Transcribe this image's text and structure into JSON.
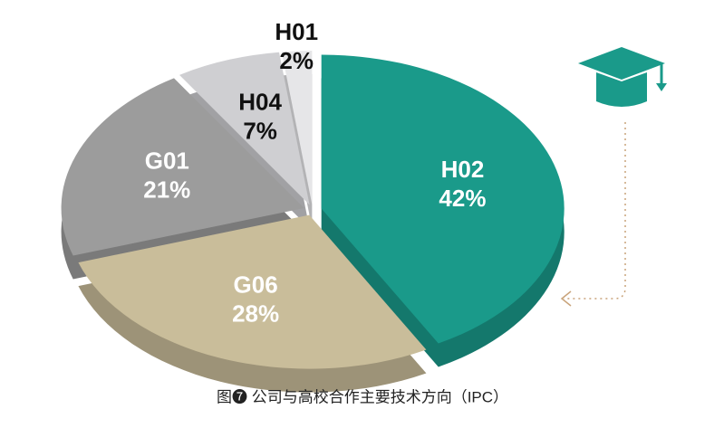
{
  "chart_data": {
    "type": "pie",
    "title": "图❼  公司与高校合作主要技术方向（IPC）",
    "categories": [
      "H02",
      "G06",
      "G01",
      "H04",
      "H01"
    ],
    "values": [
      42,
      28,
      21,
      7,
      2
    ],
    "value_labels": [
      "42%",
      "28%",
      "21%",
      "7%",
      "2%"
    ],
    "colors": [
      "#1a9a8a",
      "#c9bd9a",
      "#9c9c9c",
      "#cfcfd2",
      "#e6e6e8"
    ]
  }
}
